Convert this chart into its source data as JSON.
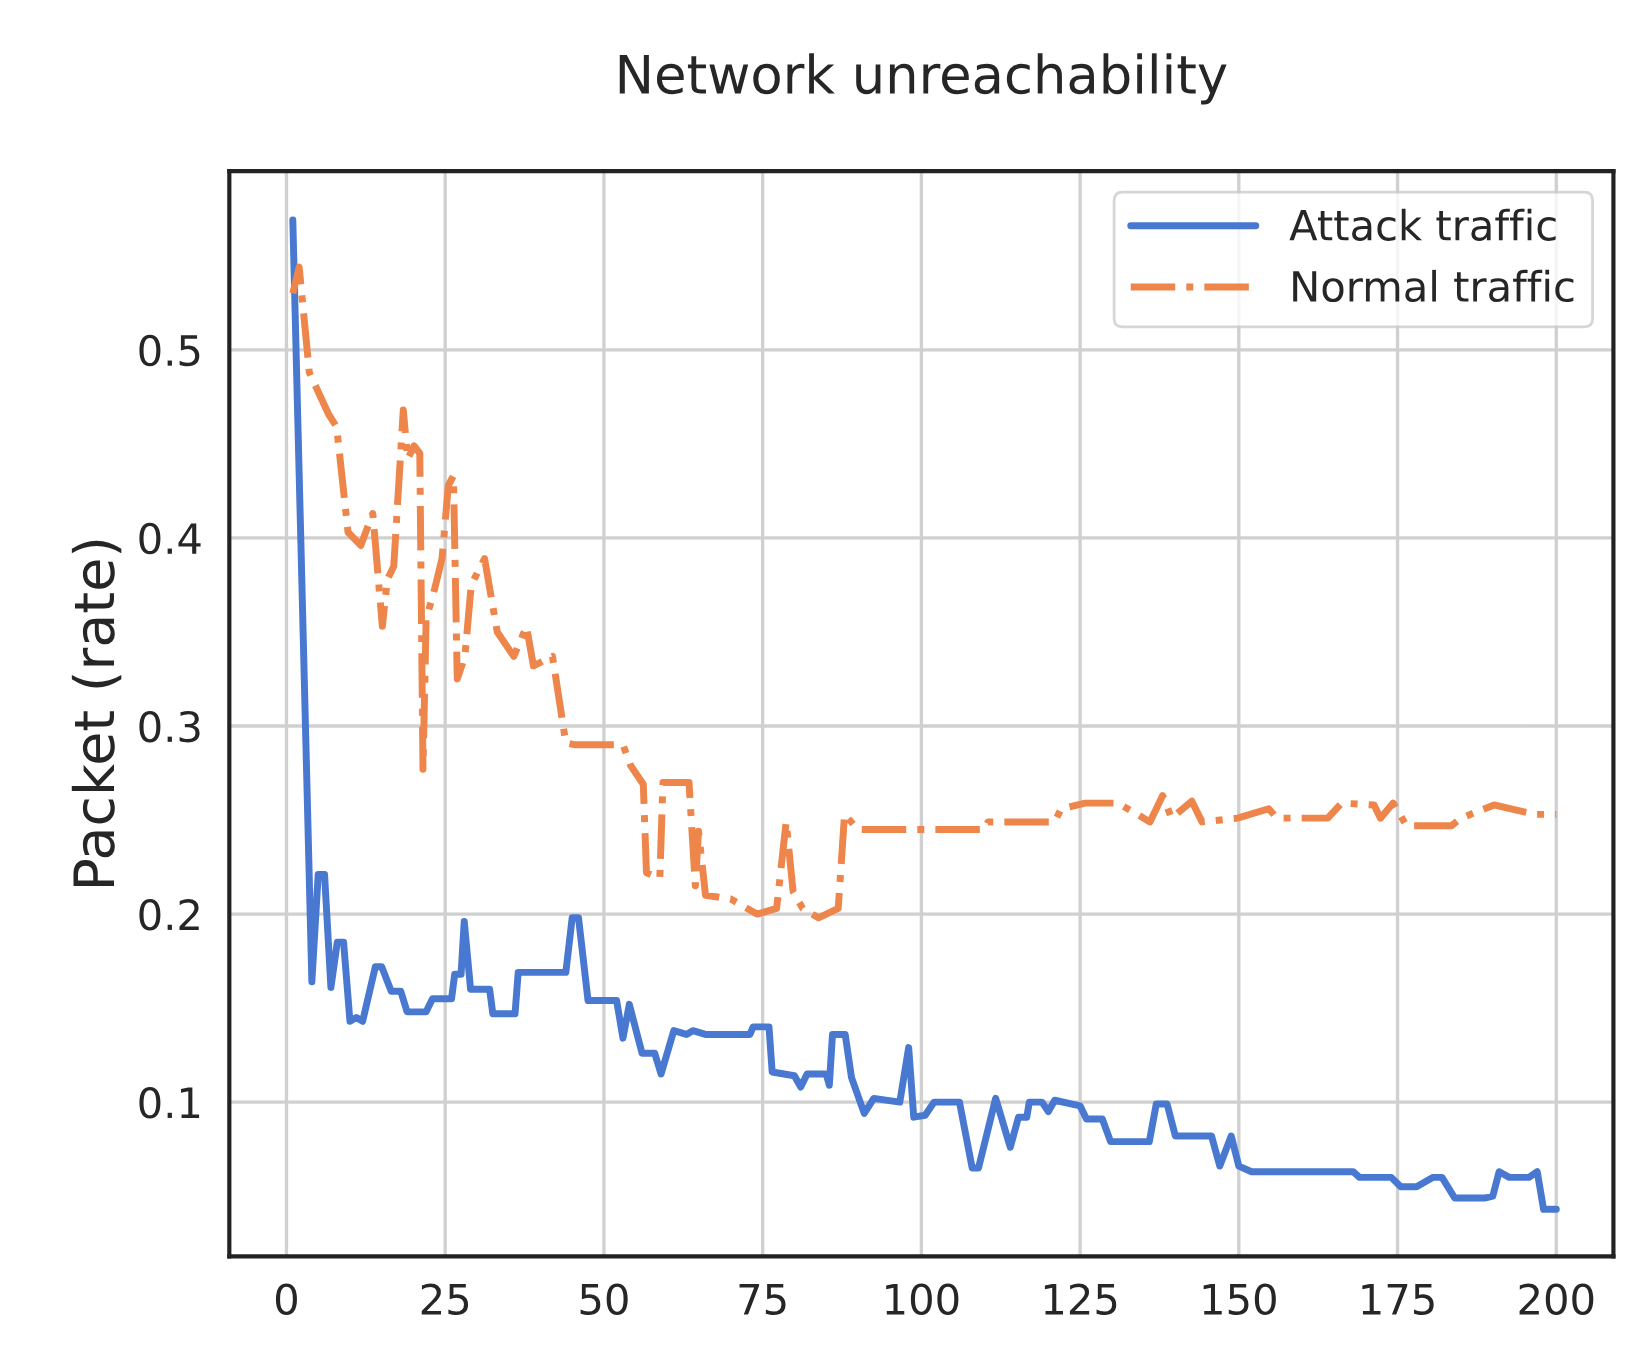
{
  "chart_data": {
    "type": "line",
    "title": "Network unreachability",
    "ylabel": "Packet (rate)",
    "xlim": [
      -9,
      209
    ],
    "xticks": [
      0,
      25,
      50,
      75,
      100,
      125,
      150,
      175,
      200
    ],
    "ylim": [
      0.018,
      0.595
    ],
    "yticks": [
      0.1,
      0.2,
      0.3,
      0.4,
      0.5
    ],
    "grid": true,
    "legend": "top right",
    "series": [
      {
        "name": "Attack traffic",
        "color": "#4878d0",
        "line_style": "solid",
        "x": [
          1,
          4,
          5,
          6,
          7,
          8,
          9,
          10,
          11,
          12,
          14,
          15,
          16.5,
          18,
          19,
          22,
          23,
          26,
          26.5,
          27.5,
          28,
          29,
          32,
          32.5,
          36,
          36.5,
          44,
          45,
          46,
          47.5,
          52,
          53,
          54,
          56,
          58,
          59,
          61,
          63,
          64,
          66,
          73,
          73.5,
          76,
          76.5,
          80,
          81,
          82,
          85,
          85.5,
          86,
          88,
          89,
          91,
          92.5,
          96.6,
          98,
          98.8,
          100.6,
          102,
          106,
          108,
          109,
          111.7,
          114,
          115.3,
          116.6,
          117,
          119,
          120,
          121,
          125,
          126,
          128.5,
          129.8,
          135.9,
          137,
          138.7,
          140,
          145.7,
          147,
          148.8,
          150,
          152,
          168,
          169,
          174,
          175.5,
          178,
          180.6,
          182,
          184,
          188.7,
          190,
          191,
          192.6,
          195.7,
          197,
          198,
          200
        ],
        "values": [
          0.569,
          0.164,
          0.221,
          0.221,
          0.161,
          0.185,
          0.185,
          0.143,
          0.145,
          0.143,
          0.172,
          0.172,
          0.159,
          0.159,
          0.148,
          0.148,
          0.155,
          0.155,
          0.168,
          0.168,
          0.196,
          0.16,
          0.16,
          0.147,
          0.147,
          0.169,
          0.169,
          0.198,
          0.198,
          0.154,
          0.154,
          0.134,
          0.152,
          0.126,
          0.126,
          0.115,
          0.138,
          0.136,
          0.138,
          0.136,
          0.136,
          0.14,
          0.14,
          0.116,
          0.114,
          0.108,
          0.115,
          0.115,
          0.109,
          0.136,
          0.136,
          0.113,
          0.094,
          0.102,
          0.1,
          0.129,
          0.092,
          0.093,
          0.1,
          0.1,
          0.065,
          0.065,
          0.102,
          0.076,
          0.092,
          0.092,
          0.1,
          0.1,
          0.095,
          0.101,
          0.098,
          0.091,
          0.091,
          0.079,
          0.079,
          0.099,
          0.099,
          0.082,
          0.082,
          0.066,
          0.082,
          0.066,
          0.063,
          0.063,
          0.06,
          0.06,
          0.055,
          0.055,
          0.06,
          0.06,
          0.049,
          0.049,
          0.05,
          0.063,
          0.06,
          0.06,
          0.063,
          0.043,
          0.043
        ]
      },
      {
        "name": "Normal traffic",
        "color": "#ee854a",
        "line_style": "dashdot",
        "x": [
          1,
          2,
          3.6,
          6.6,
          7.9,
          9.7,
          11.7,
          13.6,
          15.1,
          15.9,
          16.9,
          18.4,
          19.1,
          20.1,
          21,
          21.5,
          22,
          23.2,
          24.5,
          25.5,
          26.3,
          26.9,
          28.1,
          29.1,
          31.2,
          33.2,
          35.8,
          37.8,
          38.9,
          41.9,
          44,
          45.5,
          53,
          54.2,
          56.2,
          56.7,
          58.8,
          59.3,
          63.4,
          64.4,
          64.9,
          66,
          70,
          74.1,
          77.2,
          78.7,
          79.8,
          81.3,
          83.8,
          86.9,
          87.9,
          90,
          109.9,
          110.5,
          121,
          122,
          125.8,
          130.9,
          133,
          136,
          138,
          139.4,
          142.6,
          144.2,
          149.8,
          154.7,
          156,
          164,
          166.2,
          171.3,
          172.3,
          174.3,
          176.4,
          183.5,
          185,
          190.2,
          192.7,
          196.8,
          200
        ],
        "values": [
          0.53,
          0.544,
          0.488,
          0.466,
          0.459,
          0.403,
          0.396,
          0.413,
          0.353,
          0.378,
          0.385,
          0.468,
          0.442,
          0.449,
          0.445,
          0.277,
          0.357,
          0.371,
          0.389,
          0.428,
          0.433,
          0.325,
          0.337,
          0.375,
          0.389,
          0.35,
          0.337,
          0.353,
          0.332,
          0.337,
          0.291,
          0.29,
          0.29,
          0.279,
          0.269,
          0.222,
          0.219,
          0.27,
          0.27,
          0.215,
          0.244,
          0.21,
          0.208,
          0.2,
          0.203,
          0.249,
          0.212,
          0.203,
          0.198,
          0.203,
          0.253,
          0.245,
          0.245,
          0.249,
          0.249,
          0.256,
          0.259,
          0.259,
          0.255,
          0.249,
          0.263,
          0.251,
          0.26,
          0.249,
          0.251,
          0.256,
          0.251,
          0.251,
          0.259,
          0.258,
          0.251,
          0.259,
          0.247,
          0.247,
          0.251,
          0.258,
          0.256,
          0.253,
          0.253
        ]
      }
    ]
  }
}
